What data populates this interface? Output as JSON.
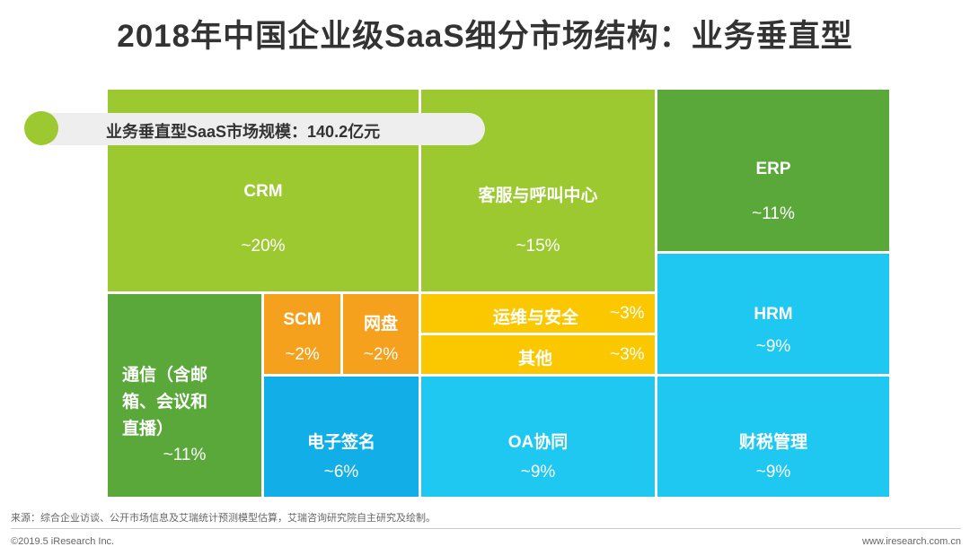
{
  "page": {
    "title": "2018年中国企业级SaaS细分市场结构：业务垂直型",
    "callout": "业务垂直型SaaS市场规模：140.2亿元",
    "source": "来源：综合企业访谈、公开市场信息及艾瑞统计预测模型估算，艾瑞咨询研究院自主研究及绘制。",
    "copyright": "©2019.5 iResearch Inc.",
    "website": "www.iresearch.com.cn"
  },
  "colors": {
    "light_green": "#9dc930",
    "mid_green": "#77b937",
    "dark_green": "#5aa83a",
    "orange": "#f6a11d",
    "yellow": "#fbc800",
    "cyan": "#1ec8f1",
    "blue": "#12aee8"
  },
  "chart_data": {
    "type": "treemap",
    "title": "2018年中国企业级SaaS细分市场结构：业务垂直型",
    "total": "140.2亿元",
    "items": [
      {
        "name": "CRM",
        "value_label": "~20%",
        "value": 20
      },
      {
        "name": "客服与呼叫中心",
        "value_label": "~15%",
        "value": 15
      },
      {
        "name": "ERP",
        "value_label": "~11%",
        "value": 11
      },
      {
        "name": "HRM",
        "value_label": "~9%",
        "value": 9
      },
      {
        "name": "通信（含邮箱、会议和直播）",
        "value_label": "~11%",
        "value": 11
      },
      {
        "name": "SCM",
        "value_label": "~2%",
        "value": 2
      },
      {
        "name": "网盘",
        "value_label": "~2%",
        "value": 2
      },
      {
        "name": "运维与安全",
        "value_label": "~3%",
        "value": 3
      },
      {
        "name": "其他",
        "value_label": "~3%",
        "value": 3
      },
      {
        "name": "电子签名",
        "value_label": "~6%",
        "value": 6
      },
      {
        "name": "OA协同",
        "value_label": "~9%",
        "value": 9
      },
      {
        "name": "财税管理",
        "value_label": "~9%",
        "value": 9
      }
    ]
  }
}
